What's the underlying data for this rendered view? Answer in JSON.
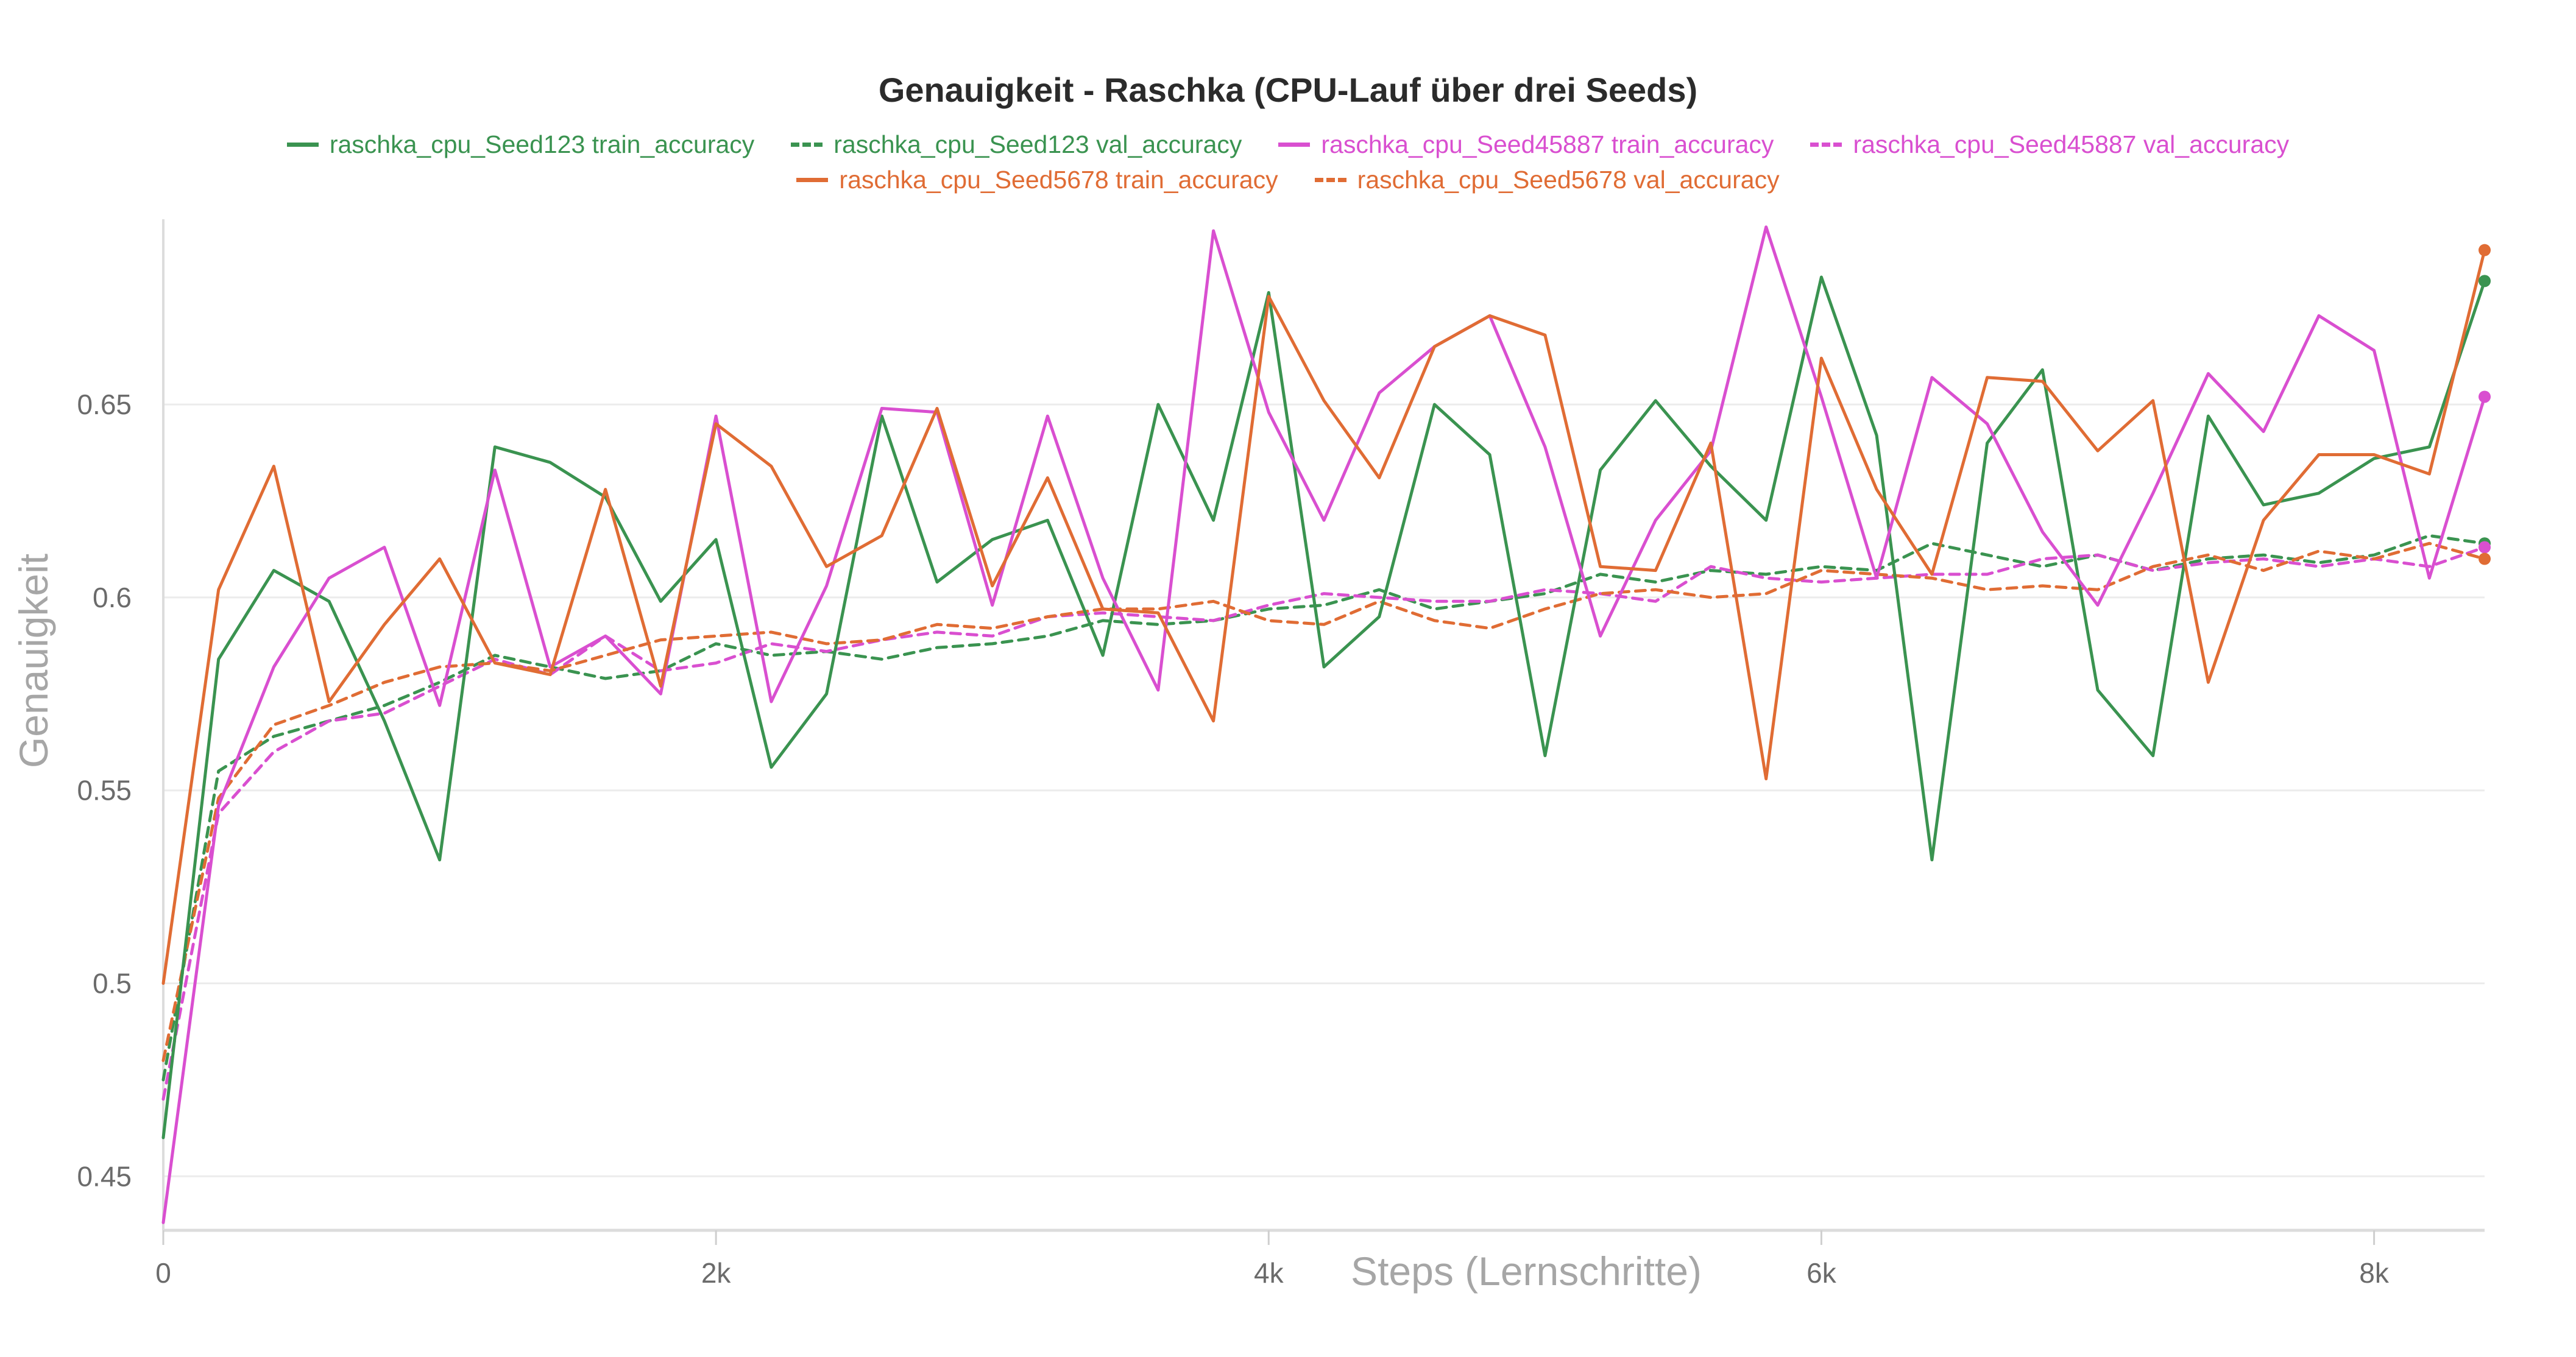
{
  "chart_data": {
    "type": "line",
    "title": "Genauigkeit - Raschka (CPU-Lauf über drei Seeds)",
    "xlabel": "Steps (Lernschritte)",
    "ylabel": "Genauigkeit",
    "xlim": [
      0,
      8400
    ],
    "ylim": [
      0.436,
      0.698
    ],
    "xticks": [
      0,
      2000,
      4000,
      6000,
      8000
    ],
    "xtick_labels": [
      "0",
      "2k",
      "4k",
      "6k",
      "8k"
    ],
    "yticks": [
      0.45,
      0.5,
      0.55,
      0.6,
      0.65
    ],
    "ytick_labels": [
      "0.45",
      "0.5",
      "0.55",
      "0.6",
      "0.65"
    ],
    "grid": "horizontal",
    "legend_position": "top-center",
    "x": [
      0,
      200,
      400,
      600,
      800,
      1000,
      1200,
      1400,
      1600,
      1800,
      2000,
      2200,
      2400,
      2600,
      2800,
      3000,
      3200,
      3400,
      3600,
      3800,
      4000,
      4200,
      4400,
      4600,
      4800,
      5000,
      5200,
      5400,
      5600,
      5800,
      6000,
      6200,
      6400,
      6600,
      6800,
      7000,
      7200,
      7400,
      7600,
      7800,
      8000,
      8200,
      8400
    ],
    "series": [
      {
        "name": "raschka_cpu_Seed123 train_accuracy",
        "color": "#3a9350",
        "dash": "solid",
        "values": [
          0.46,
          0.584,
          0.607,
          0.599,
          0.568,
          0.532,
          0.639,
          0.635,
          0.626,
          0.599,
          0.615,
          0.556,
          0.575,
          0.647,
          0.604,
          0.615,
          0.62,
          0.585,
          0.65,
          0.62,
          0.679,
          0.582,
          0.595,
          0.65,
          0.637,
          0.559,
          0.633,
          0.651,
          0.634,
          0.62,
          0.683,
          0.642,
          0.532,
          0.64,
          0.659,
          0.576,
          0.559,
          0.647,
          0.624,
          0.627,
          0.636,
          0.639,
          0.682
        ]
      },
      {
        "name": "raschka_cpu_Seed123 val_accuracy",
        "color": "#3a9350",
        "dash": "dashed",
        "values": [
          0.475,
          0.555,
          0.564,
          0.568,
          0.572,
          0.578,
          0.585,
          0.582,
          0.579,
          0.581,
          0.588,
          0.585,
          0.586,
          0.584,
          0.587,
          0.588,
          0.59,
          0.594,
          0.593,
          0.594,
          0.597,
          0.598,
          0.602,
          0.597,
          0.599,
          0.601,
          0.606,
          0.604,
          0.607,
          0.606,
          0.608,
          0.607,
          0.614,
          0.611,
          0.608,
          0.611,
          0.607,
          0.61,
          0.611,
          0.609,
          0.611,
          0.616,
          0.614
        ]
      },
      {
        "name": "raschka_cpu_Seed45887 train_accuracy",
        "color": "#d94fd0",
        "dash": "solid",
        "values": [
          0.438,
          0.546,
          0.582,
          0.605,
          0.613,
          0.572,
          0.633,
          0.582,
          0.59,
          0.575,
          0.647,
          0.573,
          0.603,
          0.649,
          0.648,
          0.598,
          0.647,
          0.605,
          0.576,
          0.695,
          0.648,
          0.62,
          0.653,
          0.665,
          0.673,
          0.639,
          0.59,
          0.62,
          0.638,
          0.696,
          0.652,
          0.605,
          0.657,
          0.645,
          0.617,
          0.598,
          0.627,
          0.658,
          0.643,
          0.673,
          0.664,
          0.605,
          0.652
        ]
      },
      {
        "name": "raschka_cpu_Seed45887 val_accuracy",
        "color": "#d94fd0",
        "dash": "dashed",
        "values": [
          0.47,
          0.544,
          0.56,
          0.568,
          0.57,
          0.577,
          0.584,
          0.58,
          0.59,
          0.581,
          0.583,
          0.588,
          0.586,
          0.589,
          0.591,
          0.59,
          0.595,
          0.596,
          0.595,
          0.594,
          0.598,
          0.601,
          0.6,
          0.599,
          0.599,
          0.602,
          0.601,
          0.599,
          0.608,
          0.605,
          0.604,
          0.605,
          0.606,
          0.606,
          0.61,
          0.611,
          0.607,
          0.609,
          0.61,
          0.608,
          0.61,
          0.608,
          0.613
        ]
      },
      {
        "name": "raschka_cpu_Seed5678 train_accuracy",
        "color": "#e06c34",
        "dash": "solid",
        "values": [
          0.5,
          0.602,
          0.634,
          0.573,
          0.593,
          0.61,
          0.583,
          0.58,
          0.628,
          0.577,
          0.645,
          0.634,
          0.608,
          0.616,
          0.649,
          0.603,
          0.631,
          0.597,
          0.596,
          0.568,
          0.678,
          0.651,
          0.631,
          0.665,
          0.673,
          0.668,
          0.608,
          0.607,
          0.64,
          0.553,
          0.662,
          0.628,
          0.606,
          0.657,
          0.656,
          0.638,
          0.651,
          0.578,
          0.62,
          0.637,
          0.637,
          0.632,
          0.69
        ]
      },
      {
        "name": "raschka_cpu_Seed5678 val_accuracy",
        "color": "#e06c34",
        "dash": "dashed",
        "values": [
          0.48,
          0.548,
          0.567,
          0.572,
          0.578,
          0.582,
          0.583,
          0.581,
          0.585,
          0.589,
          0.59,
          0.591,
          0.588,
          0.589,
          0.593,
          0.592,
          0.595,
          0.597,
          0.597,
          0.599,
          0.594,
          0.593,
          0.599,
          0.594,
          0.592,
          0.597,
          0.601,
          0.602,
          0.6,
          0.601,
          0.607,
          0.606,
          0.605,
          0.602,
          0.603,
          0.602,
          0.608,
          0.611,
          0.607,
          0.612,
          0.61,
          0.614,
          0.61
        ]
      }
    ]
  }
}
